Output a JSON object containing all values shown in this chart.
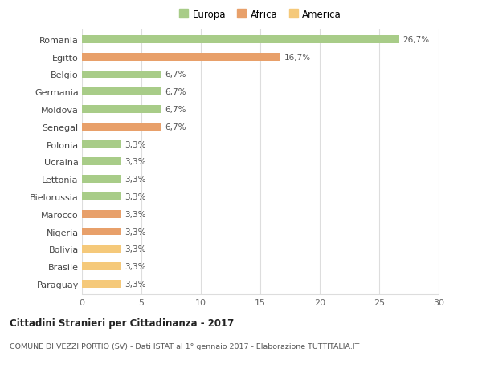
{
  "categories": [
    "Paraguay",
    "Brasile",
    "Bolivia",
    "Nigeria",
    "Marocco",
    "Bielorussia",
    "Lettonia",
    "Ucraina",
    "Polonia",
    "Senegal",
    "Moldova",
    "Germania",
    "Belgio",
    "Egitto",
    "Romania"
  ],
  "values": [
    3.3,
    3.3,
    3.3,
    3.3,
    3.3,
    3.3,
    3.3,
    3.3,
    3.3,
    6.7,
    6.7,
    6.7,
    6.7,
    16.7,
    26.7
  ],
  "colors": [
    "#f5c97a",
    "#f5c97a",
    "#f5c97a",
    "#e8a06a",
    "#e8a06a",
    "#a8cc88",
    "#a8cc88",
    "#a8cc88",
    "#a8cc88",
    "#e8a06a",
    "#a8cc88",
    "#a8cc88",
    "#a8cc88",
    "#e8a06a",
    "#a8cc88"
  ],
  "labels": [
    "3,3%",
    "3,3%",
    "3,3%",
    "3,3%",
    "3,3%",
    "3,3%",
    "3,3%",
    "3,3%",
    "3,3%",
    "6,7%",
    "6,7%",
    "6,7%",
    "6,7%",
    "16,7%",
    "26,7%"
  ],
  "legend": [
    {
      "label": "Europa",
      "color": "#a8cc88"
    },
    {
      "label": "Africa",
      "color": "#e8a06a"
    },
    {
      "label": "America",
      "color": "#f5c97a"
    }
  ],
  "title": "Cittadini Stranieri per Cittadinanza - 2017",
  "subtitle": "COMUNE DI VEZZI PORTIO (SV) - Dati ISTAT al 1° gennaio 2017 - Elaborazione TUTTITALIA.IT",
  "xlim": [
    0,
    30
  ],
  "xticks": [
    0,
    5,
    10,
    15,
    20,
    25,
    30
  ],
  "background_color": "#ffffff",
  "grid_color": "#dddddd"
}
